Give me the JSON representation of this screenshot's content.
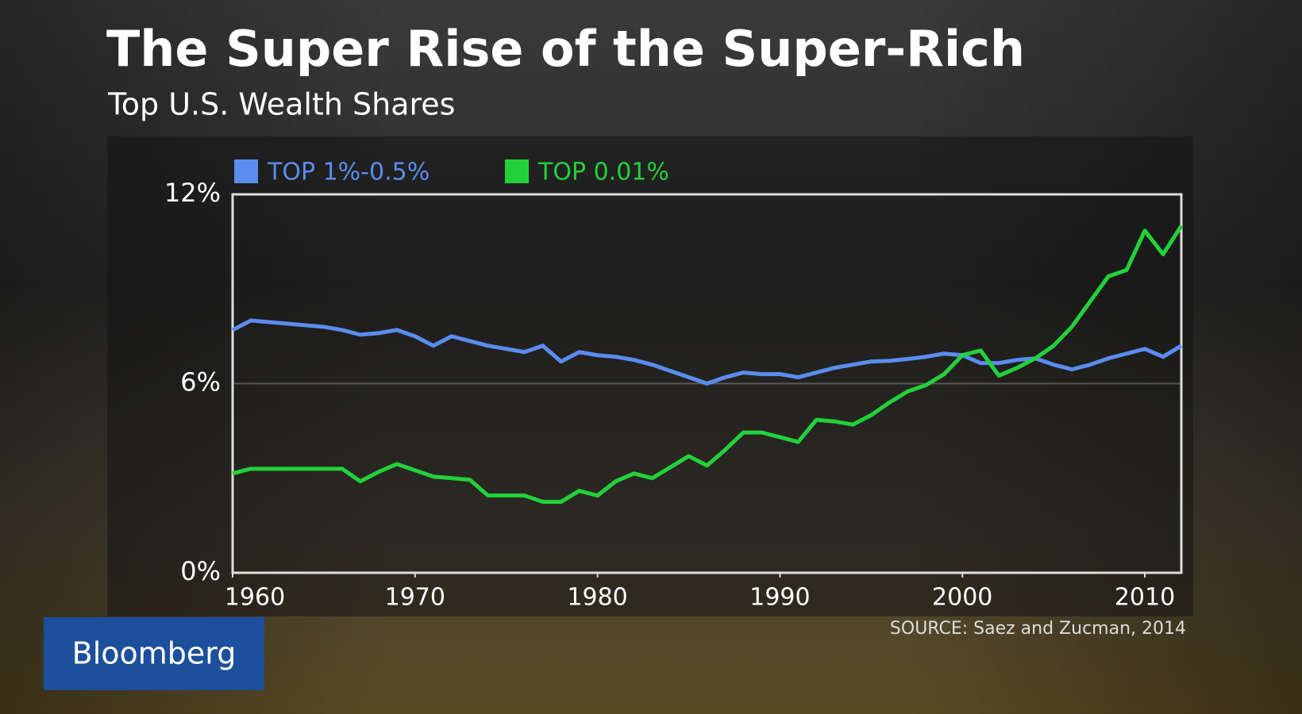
{
  "chart_data": {
    "type": "line",
    "title": "The Super Rise of the Super-Rich",
    "subtitle": "Top U.S. Wealth Shares",
    "source": "SOURCE: Saez and Zucman, 2014",
    "x": [
      1960,
      1961,
      1962,
      1963,
      1964,
      1965,
      1966,
      1967,
      1968,
      1969,
      1970,
      1971,
      1972,
      1973,
      1974,
      1975,
      1976,
      1977,
      1978,
      1979,
      1980,
      1981,
      1982,
      1983,
      1984,
      1985,
      1986,
      1987,
      1988,
      1989,
      1990,
      1991,
      1992,
      1993,
      1994,
      1995,
      1996,
      1997,
      1998,
      1999,
      2000,
      2001,
      2002,
      2003,
      2004,
      2005,
      2006,
      2007,
      2008,
      2009,
      2010,
      2011,
      2012
    ],
    "series": [
      {
        "name": "TOP 1%-0.5%",
        "color": "#5b8def",
        "values": [
          7.7,
          8.0,
          7.95,
          7.9,
          7.85,
          7.8,
          7.7,
          7.55,
          7.6,
          7.7,
          7.5,
          7.2,
          7.5,
          7.35,
          7.2,
          7.1,
          7.0,
          7.2,
          6.7,
          7.0,
          6.9,
          6.85,
          6.75,
          6.6,
          6.4,
          6.2,
          6.0,
          6.2,
          6.35,
          6.3,
          6.3,
          6.2,
          6.35,
          6.5,
          6.6,
          6.7,
          6.72,
          6.78,
          6.85,
          6.95,
          6.9,
          6.65,
          6.65,
          6.75,
          6.8,
          6.6,
          6.45,
          6.6,
          6.8,
          6.95,
          7.1,
          6.85,
          7.2
        ]
      },
      {
        "name": "TOP 0.01%",
        "color": "#22d13a",
        "values": [
          3.15,
          3.3,
          3.3,
          3.3,
          3.3,
          3.3,
          3.3,
          2.9,
          3.2,
          3.45,
          3.25,
          3.05,
          3.0,
          2.95,
          2.45,
          2.45,
          2.45,
          2.25,
          2.25,
          2.6,
          2.45,
          2.9,
          3.15,
          3.0,
          3.35,
          3.7,
          3.4,
          3.9,
          4.45,
          4.45,
          4.3,
          4.15,
          4.85,
          4.8,
          4.7,
          5.0,
          5.4,
          5.75,
          5.95,
          6.3,
          6.9,
          7.05,
          6.25,
          6.5,
          6.8,
          7.2,
          7.8,
          8.6,
          9.4,
          9.6,
          10.85,
          10.1,
          11.0
        ]
      }
    ],
    "xlim": [
      1960,
      2012
    ],
    "xticks": [
      1960,
      1970,
      1980,
      1990,
      2000,
      2010
    ],
    "ylim": [
      0,
      12
    ],
    "yticks": [
      {
        "value": 0,
        "label": "0%"
      },
      {
        "value": 6,
        "label": "6%"
      },
      {
        "value": 12,
        "label": "12%"
      }
    ],
    "grid": true,
    "legend": "top-left"
  },
  "branding": {
    "logo": "Bloomberg"
  }
}
